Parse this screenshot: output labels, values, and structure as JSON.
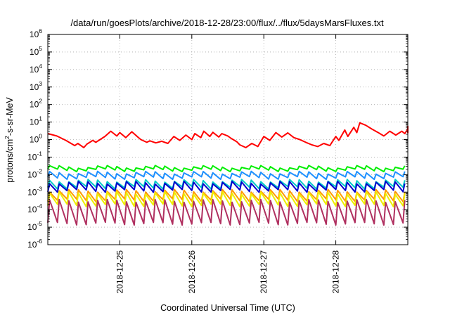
{
  "chart_data": {
    "type": "line",
    "title": "/data/run/goesPlots/archive/2018-12-28/23:00/flux/../flux/5daysMarsFluxes.txt",
    "xlabel": "Coordinated Universal Time (UTC)",
    "ylabel": {
      "prefix": "protons/cm",
      "sup": "2",
      "suffix": "-s-sr-MeV"
    },
    "x_range": [
      "2018-12-24 00:00",
      "2018-12-29 00:00"
    ],
    "x_ticks": [
      "2018-12-25",
      "2018-12-26",
      "2018-12-27",
      "2018-12-28"
    ],
    "y_scale": "log",
    "ylim": [
      1e-06,
      1000000.0
    ],
    "y_ticks": [
      {
        "base": "10",
        "exp": "-6"
      },
      {
        "base": "10",
        "exp": "-5"
      },
      {
        "base": "10",
        "exp": "-4"
      },
      {
        "base": "10",
        "exp": "-3"
      },
      {
        "base": "10",
        "exp": "-2"
      },
      {
        "base": "10",
        "exp": "-1"
      },
      {
        "base": "10",
        "exp": "0"
      },
      {
        "base": "10",
        "exp": "1"
      },
      {
        "base": "10",
        "exp": "2"
      },
      {
        "base": "10",
        "exp": "3"
      },
      {
        "base": "10",
        "exp": "4"
      },
      {
        "base": "10",
        "exp": "5"
      },
      {
        "base": "10",
        "exp": "6"
      }
    ],
    "grid": true,
    "series": [
      {
        "color": "#ff0000",
        "x_hours": [
          0,
          3,
          6,
          9,
          10,
          12,
          13,
          15,
          16,
          19,
          21,
          23,
          24,
          26,
          28,
          30,
          31,
          33,
          34,
          36,
          38,
          40,
          42,
          44,
          46,
          48,
          49,
          51,
          52,
          54,
          55,
          57,
          58,
          60,
          61,
          63,
          64,
          66,
          68,
          70,
          72,
          74,
          76,
          78,
          80,
          82,
          84,
          86,
          88,
          90,
          92,
          94,
          96,
          97,
          99,
          100,
          102,
          103,
          104,
          106,
          108,
          110,
          112,
          114,
          116,
          118,
          119,
          121,
          123,
          125
        ],
        "y": [
          2.2,
          1.6,
          0.9,
          0.45,
          0.6,
          0.35,
          0.55,
          0.9,
          0.7,
          1.5,
          3.0,
          1.6,
          2.5,
          1.3,
          2.8,
          1.4,
          1.0,
          0.7,
          0.85,
          0.65,
          0.8,
          0.6,
          1.5,
          0.9,
          1.8,
          1.0,
          2.2,
          1.3,
          3.0,
          1.5,
          2.6,
          1.4,
          2.2,
          1.6,
          1.2,
          0.75,
          0.5,
          0.35,
          0.6,
          0.4,
          1.5,
          0.9,
          2.5,
          1.4,
          2.4,
          1.3,
          1.0,
          0.7,
          0.5,
          0.4,
          0.6,
          0.45,
          1.5,
          0.9,
          3.5,
          1.5,
          5.0,
          2.5,
          9.0,
          6.5,
          4.0,
          2.6,
          1.6,
          3.0,
          1.8,
          3.0,
          2.2,
          4.0,
          2.5,
          6.0
        ]
      },
      {
        "color": "#00ee00",
        "base": 0.028,
        "low": 0.018
      },
      {
        "color": "#1e90ff",
        "base": 0.013,
        "low": 0.0065
      },
      {
        "color": "#00c8c8",
        "base": 0.0045,
        "low": 0.0018
      },
      {
        "color": "#0000cd",
        "base": 0.0035,
        "low": 0.0012
      },
      {
        "color": "#ff9900",
        "base": 0.0012,
        "low": 0.00035
      },
      {
        "color": "#eeee00",
        "base": 0.0009,
        "low": 0.00018
      },
      {
        "color": "#b03060",
        "base": 0.00032,
        "low": 1.6e-05
      }
    ]
  }
}
